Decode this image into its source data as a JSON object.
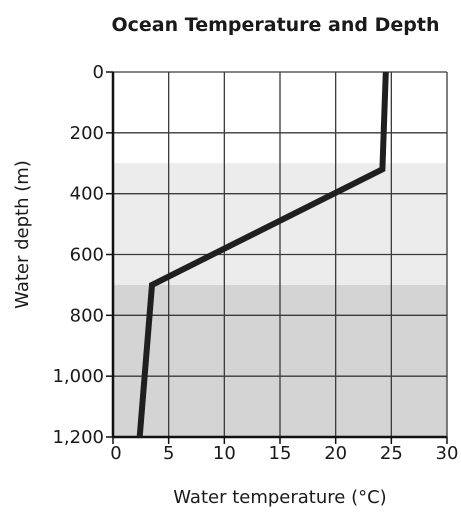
{
  "chart_data": {
    "type": "line",
    "title": "Ocean Temperature and Depth",
    "xlabel": "Water temperature (°C)",
    "ylabel": "Water depth (m)",
    "xlim": [
      0,
      30
    ],
    "ylim": [
      0,
      1200
    ],
    "y_inverted": true,
    "grid": true,
    "x_ticks": [
      0,
      5,
      10,
      15,
      20,
      25,
      30
    ],
    "x_tick_labels": [
      "0",
      "5",
      "10",
      "15",
      "20",
      "25",
      "30"
    ],
    "y_ticks": [
      0,
      200,
      400,
      600,
      800,
      1000,
      1200
    ],
    "y_tick_labels": [
      "0",
      "200",
      "400",
      "600",
      "800",
      "1,000",
      "1,200"
    ],
    "shaded_bands": [
      {
        "from_depth": 300,
        "to_depth": 700,
        "color": "#ececec"
      },
      {
        "from_depth": 700,
        "to_depth": 1200,
        "color": "#d4d4d4"
      }
    ],
    "series": [
      {
        "x": [
          24.5,
          24.2,
          3.5,
          2.4
        ],
        "y": [
          0,
          320,
          700,
          1200
        ],
        "color": "#1f1f1f"
      }
    ]
  }
}
